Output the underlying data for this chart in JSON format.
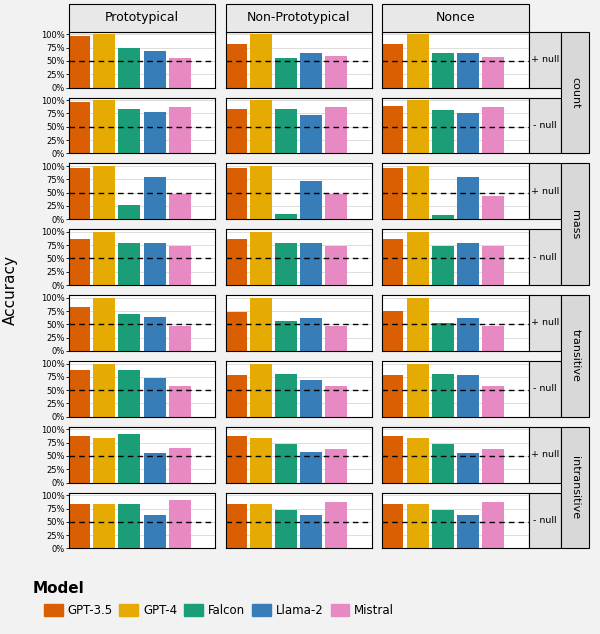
{
  "cols": [
    "Prototypical",
    "Non-Prototypical",
    "Nonce"
  ],
  "rows": [
    {
      "label": "+ null",
      "group": "count"
    },
    {
      "label": "- null",
      "group": "count"
    },
    {
      "label": "+ null",
      "group": "mass"
    },
    {
      "label": "- null",
      "group": "mass"
    },
    {
      "label": "+ null",
      "group": "transitive"
    },
    {
      "label": "- null",
      "group": "transitive"
    },
    {
      "label": "+ null",
      "group": "intransitive"
    },
    {
      "label": "- null",
      "group": "intransitive"
    }
  ],
  "models": [
    "GPT-3.5",
    "GPT-4",
    "Falcon",
    "Llama-2",
    "Mistral"
  ],
  "colors": [
    "#d95f02",
    "#e6ab02",
    "#1b9e77",
    "#377eb8",
    "#e78ac3"
  ],
  "values": {
    "count_+null": {
      "Prototypical": [
        0.97,
        1.0,
        0.75,
        0.68,
        0.55
      ],
      "Non-Prototypical": [
        0.82,
        1.0,
        0.55,
        0.65,
        0.6
      ],
      "Nonce": [
        0.82,
        1.0,
        0.65,
        0.65,
        0.58
      ]
    },
    "count_-null": {
      "Prototypical": [
        0.97,
        1.0,
        0.83,
        0.77,
        0.87
      ],
      "Non-Prototypical": [
        0.83,
        1.0,
        0.83,
        0.73,
        0.87
      ],
      "Nonce": [
        0.9,
        1.0,
        0.82,
        0.75,
        0.87
      ]
    },
    "mass_+null": {
      "Prototypical": [
        0.97,
        1.0,
        0.27,
        0.8,
        0.48
      ],
      "Non-Prototypical": [
        0.97,
        1.0,
        0.1,
        0.72,
        0.47
      ],
      "Nonce": [
        0.97,
        1.0,
        0.08,
        0.8,
        0.43
      ]
    },
    "mass_-null": {
      "Prototypical": [
        0.87,
        1.0,
        0.8,
        0.8,
        0.73
      ],
      "Non-Prototypical": [
        0.87,
        1.0,
        0.8,
        0.8,
        0.73
      ],
      "Nonce": [
        0.87,
        1.0,
        0.73,
        0.8,
        0.73
      ]
    },
    "transitive_+null": {
      "Prototypical": [
        0.82,
        1.0,
        0.7,
        0.63,
        0.47
      ],
      "Non-Prototypical": [
        0.73,
        1.0,
        0.57,
        0.62,
        0.47
      ],
      "Nonce": [
        0.75,
        1.0,
        0.52,
        0.62,
        0.47
      ]
    },
    "transitive_-null": {
      "Prototypical": [
        0.88,
        1.0,
        0.88,
        0.72,
        0.57
      ],
      "Non-Prototypical": [
        0.78,
        1.0,
        0.8,
        0.7,
        0.57
      ],
      "Nonce": [
        0.78,
        1.0,
        0.8,
        0.78,
        0.58
      ]
    },
    "intransitive_+null": {
      "Prototypical": [
        0.88,
        0.83,
        0.92,
        0.55,
        0.65
      ],
      "Non-Prototypical": [
        0.88,
        0.83,
        0.72,
        0.57,
        0.63
      ],
      "Nonce": [
        0.88,
        0.83,
        0.72,
        0.55,
        0.63
      ]
    },
    "intransitive_-null": {
      "Prototypical": [
        0.83,
        0.83,
        0.83,
        0.63,
        0.92
      ],
      "Non-Prototypical": [
        0.83,
        0.83,
        0.72,
        0.62,
        0.87
      ],
      "Nonce": [
        0.83,
        0.83,
        0.72,
        0.62,
        0.87
      ]
    }
  },
  "row_keys": [
    "count_+null",
    "count_-null",
    "mass_+null",
    "mass_-null",
    "transitive_+null",
    "transitive_-null",
    "intransitive_+null",
    "intransitive_-null"
  ],
  "groups": [
    "count",
    "mass",
    "transitive",
    "intransitive"
  ],
  "ylabel": "Accuracy",
  "legend_title": "Model",
  "dashed_line": 0.5,
  "yticks": [
    0.0,
    0.25,
    0.5,
    0.75,
    1.0
  ],
  "yticklabels": [
    "0%",
    "25%",
    "50%",
    "75%",
    "100%"
  ],
  "bg_color": "#f2f2f2",
  "panel_bg": "#ffffff",
  "header_color": "#e8e8e8",
  "strip_color": "#e0e0e0",
  "group_color": "#d8d8d8"
}
